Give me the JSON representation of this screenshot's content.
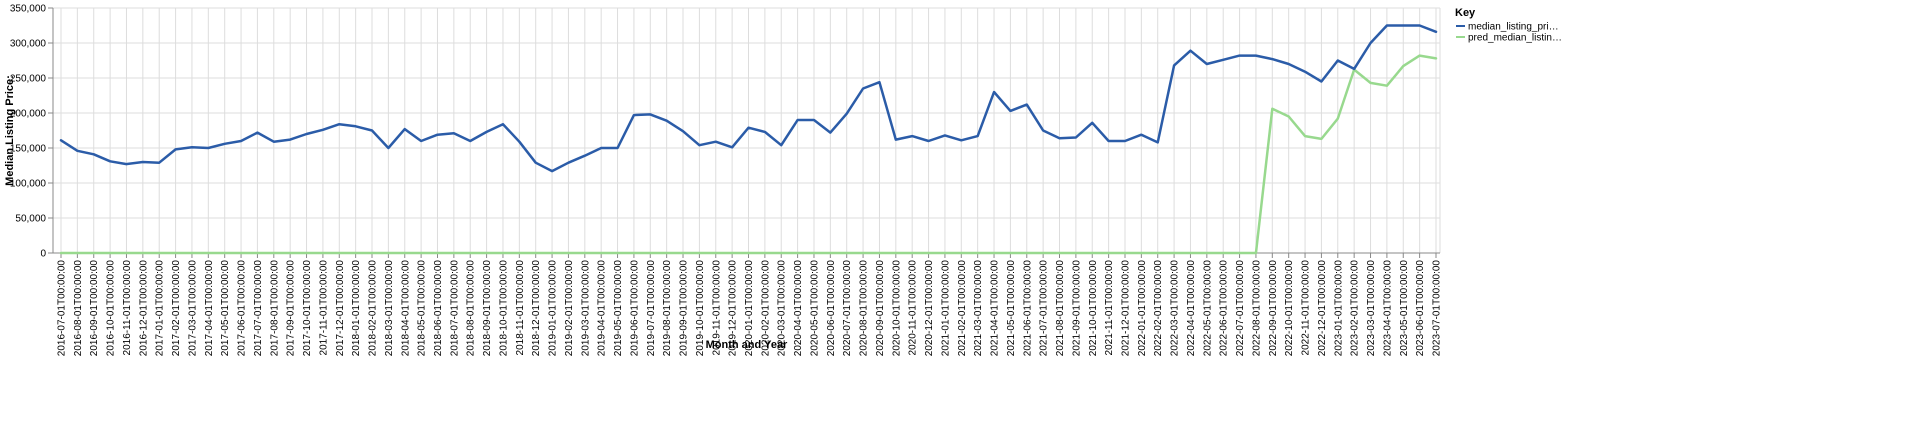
{
  "chart_data": {
    "type": "line",
    "title": "",
    "xlabel": "Month and Year",
    "ylabel": "Median Listing Price:",
    "ylim": [
      0,
      350000
    ],
    "yticks": [
      0,
      50000,
      100000,
      150000,
      200000,
      250000,
      300000,
      350000
    ],
    "ytick_labels": [
      "0",
      "50,000",
      "100,000",
      "150,000",
      "200,000",
      "250,000",
      "300,000",
      "350,000"
    ],
    "grid": true,
    "categories": [
      "2016-07-01T00:00:00",
      "2016-08-01T00:00:00",
      "2016-09-01T00:00:00",
      "2016-10-01T00:00:00",
      "2016-11-01T00:00:00",
      "2016-12-01T00:00:00",
      "2017-01-01T00:00:00",
      "2017-02-01T00:00:00",
      "2017-03-01T00:00:00",
      "2017-04-01T00:00:00",
      "2017-05-01T00:00:00",
      "2017-06-01T00:00:00",
      "2017-07-01T00:00:00",
      "2017-08-01T00:00:00",
      "2017-09-01T00:00:00",
      "2017-10-01T00:00:00",
      "2017-11-01T00:00:00",
      "2017-12-01T00:00:00",
      "2018-01-01T00:00:00",
      "2018-02-01T00:00:00",
      "2018-03-01T00:00:00",
      "2018-04-01T00:00:00",
      "2018-05-01T00:00:00",
      "2018-06-01T00:00:00",
      "2018-07-01T00:00:00",
      "2018-08-01T00:00:00",
      "2018-09-01T00:00:00",
      "2018-10-01T00:00:00",
      "2018-11-01T00:00:00",
      "2018-12-01T00:00:00",
      "2019-01-01T00:00:00",
      "2019-02-01T00:00:00",
      "2019-03-01T00:00:00",
      "2019-04-01T00:00:00",
      "2019-05-01T00:00:00",
      "2019-06-01T00:00:00",
      "2019-07-01T00:00:00",
      "2019-08-01T00:00:00",
      "2019-09-01T00:00:00",
      "2019-10-01T00:00:00",
      "2019-11-01T00:00:00",
      "2019-12-01T00:00:00",
      "2020-01-01T00:00:00",
      "2020-02-01T00:00:00",
      "2020-03-01T00:00:00",
      "2020-04-01T00:00:00",
      "2020-05-01T00:00:00",
      "2020-06-01T00:00:00",
      "2020-07-01T00:00:00",
      "2020-08-01T00:00:00",
      "2020-09-01T00:00:00",
      "2020-10-01T00:00:00",
      "2020-11-01T00:00:00",
      "2020-12-01T00:00:00",
      "2021-01-01T00:00:00",
      "2021-02-01T00:00:00",
      "2021-03-01T00:00:00",
      "2021-04-01T00:00:00",
      "2021-05-01T00:00:00",
      "2021-06-01T00:00:00",
      "2021-07-01T00:00:00",
      "2021-08-01T00:00:00",
      "2021-09-01T00:00:00",
      "2021-10-01T00:00:00",
      "2021-11-01T00:00:00",
      "2021-12-01T00:00:00",
      "2022-01-01T00:00:00",
      "2022-02-01T00:00:00",
      "2022-03-01T00:00:00",
      "2022-04-01T00:00:00",
      "2022-05-01T00:00:00",
      "2022-06-01T00:00:00",
      "2022-07-01T00:00:00",
      "2022-08-01T00:00:00",
      "2022-09-01T00:00:00",
      "2022-10-01T00:00:00",
      "2022-11-01T00:00:00",
      "2022-12-01T00:00:00",
      "2023-01-01T00:00:00",
      "2023-02-01T00:00:00",
      "2023-03-01T00:00:00",
      "2023-04-01T00:00:00",
      "2023-05-01T00:00:00",
      "2023-06-01T00:00:00",
      "2023-07-01T00:00:00"
    ],
    "series": [
      {
        "name": "median_listing_price",
        "legend_label": "median_listing_pri…",
        "color": "#2b5ca8",
        "values": [
          161000,
          146000,
          141000,
          131000,
          127000,
          130000,
          129000,
          148000,
          151000,
          150000,
          156000,
          160000,
          172000,
          159000,
          162000,
          170000,
          176000,
          184000,
          181000,
          175000,
          150000,
          177000,
          160000,
          169000,
          171000,
          160000,
          173000,
          184000,
          159000,
          129000,
          117000,
          129000,
          139000,
          150000,
          150000,
          197000,
          198000,
          189000,
          174000,
          154000,
          159000,
          151000,
          179000,
          173000,
          154000,
          190000,
          190000,
          172000,
          199000,
          235000,
          244000,
          162000,
          167000,
          160000,
          168000,
          161000,
          167000,
          230000,
          203000,
          212000,
          175000,
          164000,
          165000,
          186000,
          160000,
          160000,
          169000,
          158000,
          268000,
          289000,
          270000,
          276000,
          282000,
          282000,
          277000,
          270000,
          259000,
          245000,
          275000,
          263000,
          300000,
          325000,
          325000,
          325000,
          316000
        ]
      },
      {
        "name": "pred_median_listing_price",
        "legend_label": "pred_median_listin…",
        "color": "#98d98e",
        "values": [
          0,
          0,
          0,
          0,
          0,
          0,
          0,
          0,
          0,
          0,
          0,
          0,
          0,
          0,
          0,
          0,
          0,
          0,
          0,
          0,
          0,
          0,
          0,
          0,
          0,
          0,
          0,
          0,
          0,
          0,
          0,
          0,
          0,
          0,
          0,
          0,
          0,
          0,
          0,
          0,
          0,
          0,
          0,
          0,
          0,
          0,
          0,
          0,
          0,
          0,
          0,
          0,
          0,
          0,
          0,
          0,
          0,
          0,
          0,
          0,
          0,
          0,
          0,
          0,
          0,
          0,
          0,
          0,
          0,
          0,
          0,
          0,
          0,
          0,
          206000,
          195000,
          167000,
          163000,
          192000,
          262000,
          243000,
          239000,
          267000,
          282000,
          278000
        ]
      }
    ],
    "legend": {
      "title": "Key",
      "position": "top-right"
    }
  }
}
